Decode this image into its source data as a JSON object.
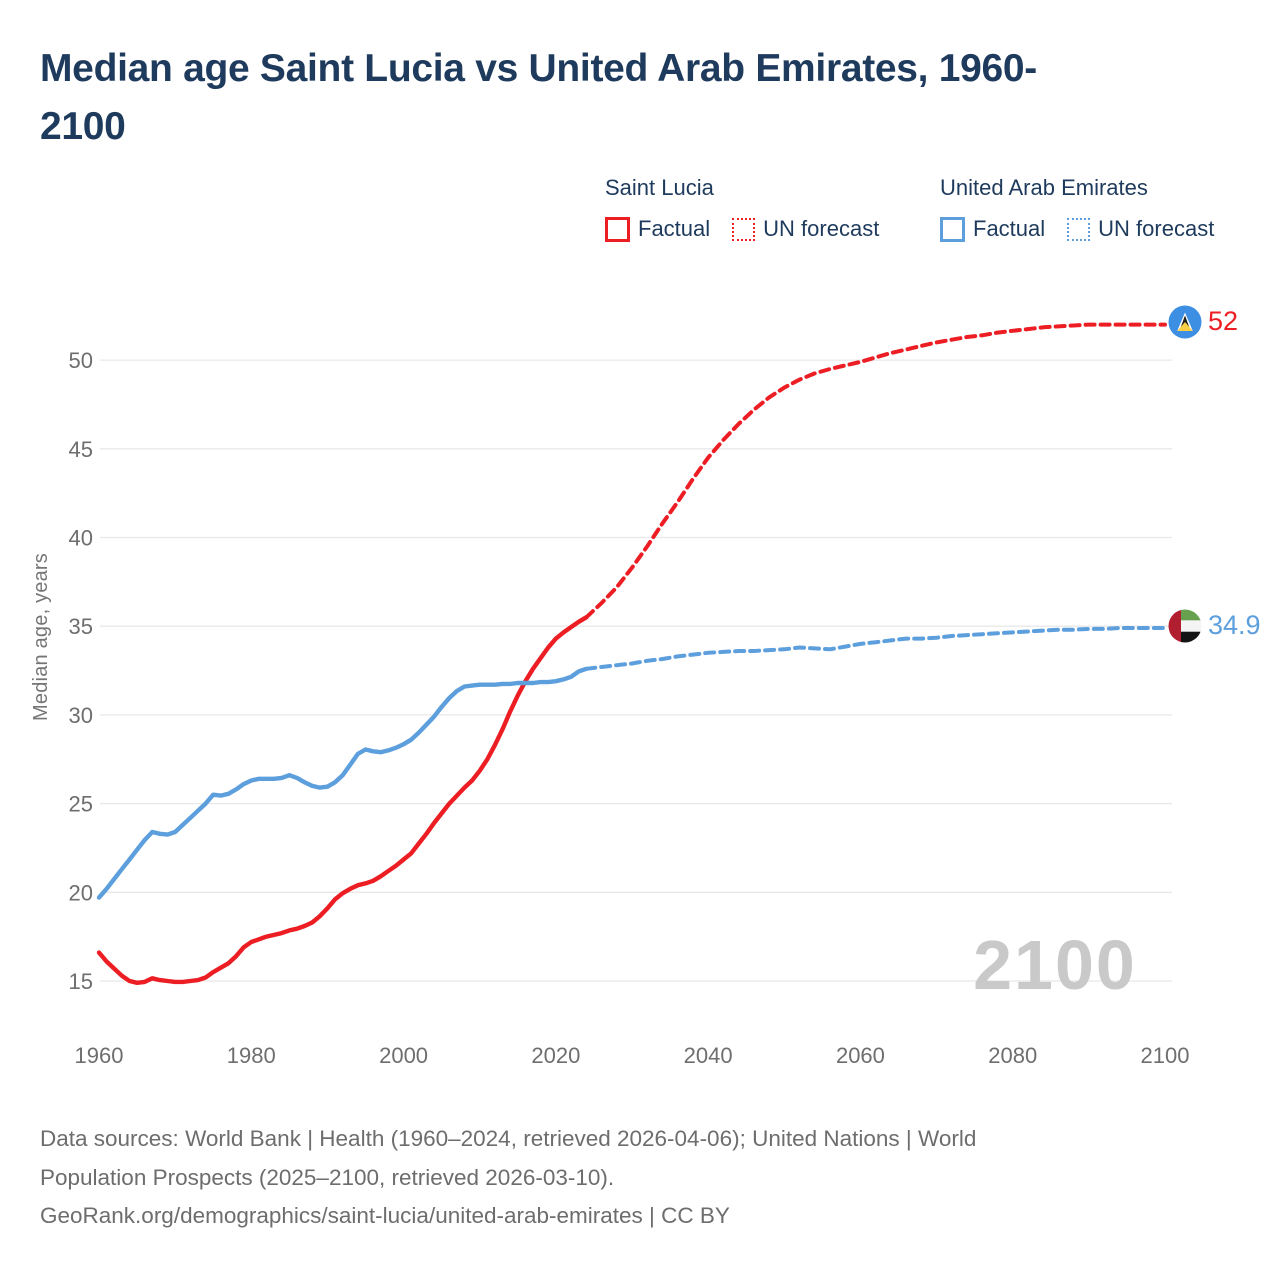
{
  "header": {
    "title_lines": [
      "Median age Saint Lucia vs United Arab Emirates, 1960-",
      "2100"
    ]
  },
  "legend": {
    "groups": [
      {
        "title": "Saint Lucia",
        "color": "#EC1E24",
        "items": [
          {
            "label": "Factual",
            "style": "solid"
          },
          {
            "label": "UN forecast",
            "style": "dotted"
          }
        ]
      },
      {
        "title": "United Arab Emirates",
        "color": "#5D9FDD",
        "items": [
          {
            "label": "Factual",
            "style": "solid"
          },
          {
            "label": "UN forecast",
            "style": "dotted"
          }
        ]
      }
    ]
  },
  "chart_data": {
    "type": "line",
    "title": "Median age Saint Lucia vs United Arab Emirates, 1960-2100",
    "xlabel": "",
    "ylabel": "Median age, years",
    "xlim": [
      1960,
      2100
    ],
    "ylim": [
      13,
      53
    ],
    "xticks": [
      1960,
      1980,
      2000,
      2020,
      2040,
      2060,
      2080,
      2100
    ],
    "yticks": [
      15,
      20,
      25,
      30,
      35,
      40,
      45,
      50
    ],
    "grid": "horizontal",
    "legend_position": "top-right",
    "watermark": "2100",
    "colors": {
      "saint_lucia": "#EC1E24",
      "united_arab_emirates": "#5D9FDD",
      "gridline": "#E8E8E8",
      "tick_text": "#6E6E6E",
      "watermark": "#C9C9C9"
    },
    "series": [
      {
        "name": "Saint Lucia — Factual",
        "color": "#EC1E24",
        "dash": false,
        "points": [
          [
            1960,
            16.6
          ],
          [
            1961,
            16.1
          ],
          [
            1962,
            15.7
          ],
          [
            1963,
            15.3
          ],
          [
            1964,
            15.0
          ],
          [
            1965,
            14.9
          ],
          [
            1966,
            14.95
          ],
          [
            1967,
            15.15
          ],
          [
            1968,
            15.05
          ],
          [
            1969,
            15.0
          ],
          [
            1970,
            14.95
          ],
          [
            1971,
            14.95
          ],
          [
            1972,
            15.0
          ],
          [
            1973,
            15.05
          ],
          [
            1974,
            15.2
          ],
          [
            1975,
            15.5
          ],
          [
            1976,
            15.75
          ],
          [
            1977,
            16.0
          ],
          [
            1978,
            16.4
          ],
          [
            1979,
            16.9
          ],
          [
            1980,
            17.2
          ],
          [
            1981,
            17.35
          ],
          [
            1982,
            17.5
          ],
          [
            1983,
            17.6
          ],
          [
            1984,
            17.7
          ],
          [
            1985,
            17.85
          ],
          [
            1986,
            17.95
          ],
          [
            1987,
            18.1
          ],
          [
            1988,
            18.3
          ],
          [
            1989,
            18.65
          ],
          [
            1990,
            19.1
          ],
          [
            1991,
            19.6
          ],
          [
            1992,
            19.95
          ],
          [
            1993,
            20.2
          ],
          [
            1994,
            20.4
          ],
          [
            1995,
            20.5
          ],
          [
            1996,
            20.65
          ],
          [
            1997,
            20.9
          ],
          [
            1998,
            21.2
          ],
          [
            1999,
            21.5
          ],
          [
            2000,
            21.85
          ],
          [
            2001,
            22.2
          ],
          [
            2002,
            22.75
          ],
          [
            2003,
            23.3
          ],
          [
            2004,
            23.9
          ],
          [
            2005,
            24.45
          ],
          [
            2006,
            25.0
          ],
          [
            2007,
            25.45
          ],
          [
            2008,
            25.9
          ],
          [
            2009,
            26.3
          ],
          [
            2010,
            26.85
          ],
          [
            2011,
            27.5
          ],
          [
            2012,
            28.3
          ],
          [
            2013,
            29.2
          ],
          [
            2014,
            30.2
          ],
          [
            2015,
            31.1
          ],
          [
            2016,
            31.9
          ],
          [
            2017,
            32.6
          ],
          [
            2018,
            33.2
          ],
          [
            2019,
            33.8
          ],
          [
            2020,
            34.3
          ],
          [
            2021,
            34.65
          ],
          [
            2022,
            34.95
          ],
          [
            2023,
            35.25
          ],
          [
            2024,
            35.5
          ]
        ]
      },
      {
        "name": "Saint Lucia — UN forecast",
        "color": "#EC1E24",
        "dash": true,
        "points": [
          [
            2024,
            35.5
          ],
          [
            2026,
            36.3
          ],
          [
            2028,
            37.2
          ],
          [
            2030,
            38.3
          ],
          [
            2032,
            39.5
          ],
          [
            2034,
            40.8
          ],
          [
            2036,
            42.0
          ],
          [
            2038,
            43.3
          ],
          [
            2040,
            44.5
          ],
          [
            2042,
            45.5
          ],
          [
            2044,
            46.4
          ],
          [
            2046,
            47.2
          ],
          [
            2048,
            47.9
          ],
          [
            2050,
            48.45
          ],
          [
            2052,
            48.9
          ],
          [
            2054,
            49.25
          ],
          [
            2056,
            49.5
          ],
          [
            2058,
            49.7
          ],
          [
            2060,
            49.9
          ],
          [
            2062,
            50.15
          ],
          [
            2064,
            50.4
          ],
          [
            2066,
            50.6
          ],
          [
            2068,
            50.8
          ],
          [
            2070,
            51.0
          ],
          [
            2072,
            51.15
          ],
          [
            2074,
            51.3
          ],
          [
            2076,
            51.4
          ],
          [
            2078,
            51.55
          ],
          [
            2080,
            51.65
          ],
          [
            2082,
            51.75
          ],
          [
            2084,
            51.85
          ],
          [
            2086,
            51.9
          ],
          [
            2088,
            51.95
          ],
          [
            2090,
            52.0
          ],
          [
            2092,
            52.0
          ],
          [
            2094,
            52.0
          ],
          [
            2096,
            52.0
          ],
          [
            2098,
            52.0
          ],
          [
            2100,
            52.0
          ]
        ]
      },
      {
        "name": "United Arab Emirates — Factual",
        "color": "#5D9FDD",
        "dash": false,
        "points": [
          [
            1960,
            19.7
          ],
          [
            1961,
            20.2
          ],
          [
            1962,
            20.75
          ],
          [
            1963,
            21.3
          ],
          [
            1964,
            21.85
          ],
          [
            1965,
            22.4
          ],
          [
            1966,
            22.95
          ],
          [
            1967,
            23.4
          ],
          [
            1968,
            23.3
          ],
          [
            1969,
            23.25
          ],
          [
            1970,
            23.4
          ],
          [
            1971,
            23.8
          ],
          [
            1972,
            24.2
          ],
          [
            1973,
            24.6
          ],
          [
            1974,
            25.0
          ],
          [
            1975,
            25.5
          ],
          [
            1976,
            25.45
          ],
          [
            1977,
            25.55
          ],
          [
            1978,
            25.8
          ],
          [
            1979,
            26.1
          ],
          [
            1980,
            26.3
          ],
          [
            1981,
            26.4
          ],
          [
            1982,
            26.4
          ],
          [
            1983,
            26.4
          ],
          [
            1984,
            26.45
          ],
          [
            1985,
            26.6
          ],
          [
            1986,
            26.45
          ],
          [
            1987,
            26.2
          ],
          [
            1988,
            26.0
          ],
          [
            1989,
            25.9
          ],
          [
            1990,
            25.95
          ],
          [
            1991,
            26.2
          ],
          [
            1992,
            26.6
          ],
          [
            1993,
            27.2
          ],
          [
            1994,
            27.8
          ],
          [
            1995,
            28.05
          ],
          [
            1996,
            27.95
          ],
          [
            1997,
            27.9
          ],
          [
            1998,
            28.0
          ],
          [
            1999,
            28.15
          ],
          [
            2000,
            28.35
          ],
          [
            2001,
            28.6
          ],
          [
            2002,
            29.0
          ],
          [
            2003,
            29.45
          ],
          [
            2004,
            29.9
          ],
          [
            2005,
            30.45
          ],
          [
            2006,
            30.95
          ],
          [
            2007,
            31.35
          ],
          [
            2008,
            31.6
          ],
          [
            2009,
            31.65
          ],
          [
            2010,
            31.7
          ],
          [
            2011,
            31.7
          ],
          [
            2012,
            31.7
          ],
          [
            2013,
            31.75
          ],
          [
            2014,
            31.75
          ],
          [
            2015,
            31.8
          ],
          [
            2016,
            31.8
          ],
          [
            2017,
            31.8
          ],
          [
            2018,
            31.85
          ],
          [
            2019,
            31.85
          ],
          [
            2020,
            31.9
          ],
          [
            2021,
            32.0
          ],
          [
            2022,
            32.15
          ],
          [
            2023,
            32.45
          ],
          [
            2024,
            32.6
          ]
        ]
      },
      {
        "name": "United Arab Emirates — UN forecast",
        "color": "#5D9FDD",
        "dash": true,
        "points": [
          [
            2024,
            32.6
          ],
          [
            2026,
            32.7
          ],
          [
            2028,
            32.8
          ],
          [
            2030,
            32.9
          ],
          [
            2032,
            33.05
          ],
          [
            2034,
            33.15
          ],
          [
            2036,
            33.3
          ],
          [
            2038,
            33.4
          ],
          [
            2040,
            33.5
          ],
          [
            2042,
            33.55
          ],
          [
            2044,
            33.6
          ],
          [
            2046,
            33.6
          ],
          [
            2048,
            33.65
          ],
          [
            2050,
            33.7
          ],
          [
            2052,
            33.8
          ],
          [
            2054,
            33.75
          ],
          [
            2056,
            33.7
          ],
          [
            2058,
            33.85
          ],
          [
            2060,
            34.0
          ],
          [
            2062,
            34.1
          ],
          [
            2064,
            34.2
          ],
          [
            2066,
            34.3
          ],
          [
            2068,
            34.3
          ],
          [
            2070,
            34.35
          ],
          [
            2072,
            34.45
          ],
          [
            2074,
            34.5
          ],
          [
            2076,
            34.55
          ],
          [
            2078,
            34.6
          ],
          [
            2080,
            34.65
          ],
          [
            2082,
            34.7
          ],
          [
            2084,
            34.75
          ],
          [
            2086,
            34.8
          ],
          [
            2088,
            34.8
          ],
          [
            2090,
            34.85
          ],
          [
            2092,
            34.85
          ],
          [
            2094,
            34.9
          ],
          [
            2096,
            34.9
          ],
          [
            2098,
            34.9
          ],
          [
            2100,
            34.9
          ]
        ]
      }
    ],
    "end_labels": [
      {
        "country": "Saint Lucia",
        "value": "52",
        "color": "#EC1E24"
      },
      {
        "country": "United Arab Emirates",
        "value": "34.9",
        "color": "#5D9FDD"
      }
    ]
  },
  "footer": {
    "lines": [
      "Data sources: World Bank | Health (1960–2024, retrieved 2026-04-06); United Nations | World",
      "Population Prospects (2025–2100, retrieved 2026-03-10).",
      "GeoRank.org/demographics/saint-lucia/united-arab-emirates | CC BY"
    ]
  }
}
